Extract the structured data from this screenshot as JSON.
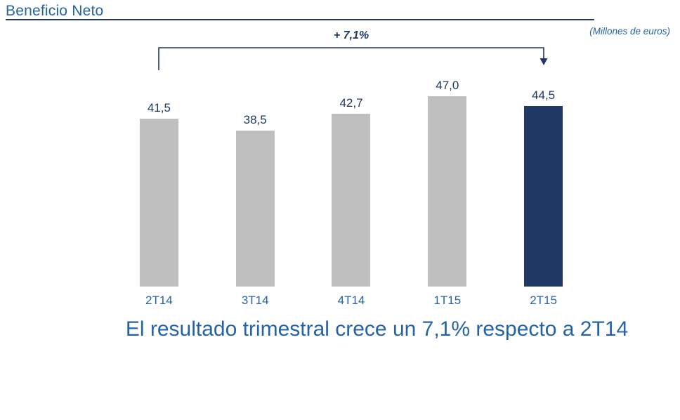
{
  "header": {
    "title": "Beneficio Neto",
    "units_note": "(Millones de euros)"
  },
  "annotation": {
    "growth_label": "+ 7,1%"
  },
  "chart_data": {
    "type": "bar",
    "title": "Beneficio Neto",
    "units": "Millones de euros",
    "categories": [
      "2T14",
      "3T14",
      "4T14",
      "1T15",
      "2T15"
    ],
    "values": [
      41.5,
      38.5,
      42.7,
      47.0,
      44.5
    ],
    "value_labels": [
      "41,5",
      "38,5",
      "42,7",
      "47,0",
      "44,5"
    ],
    "highlight_index": 4,
    "bar_color": "#BFBFBF",
    "highlight_color": "#1F3864",
    "annotation_text": "+ 7,1%",
    "annotation_from": "2T14",
    "annotation_to": "2T15",
    "ylim": [
      0,
      50
    ],
    "grid": false,
    "legend": false
  },
  "footer": {
    "message": "El resultado trimestral crece un 7,1% respecto a 2T14"
  },
  "colors": {
    "accent_navy": "#1F3864",
    "text_blue": "#2563A8",
    "bar_gray": "#BFBFBF"
  }
}
